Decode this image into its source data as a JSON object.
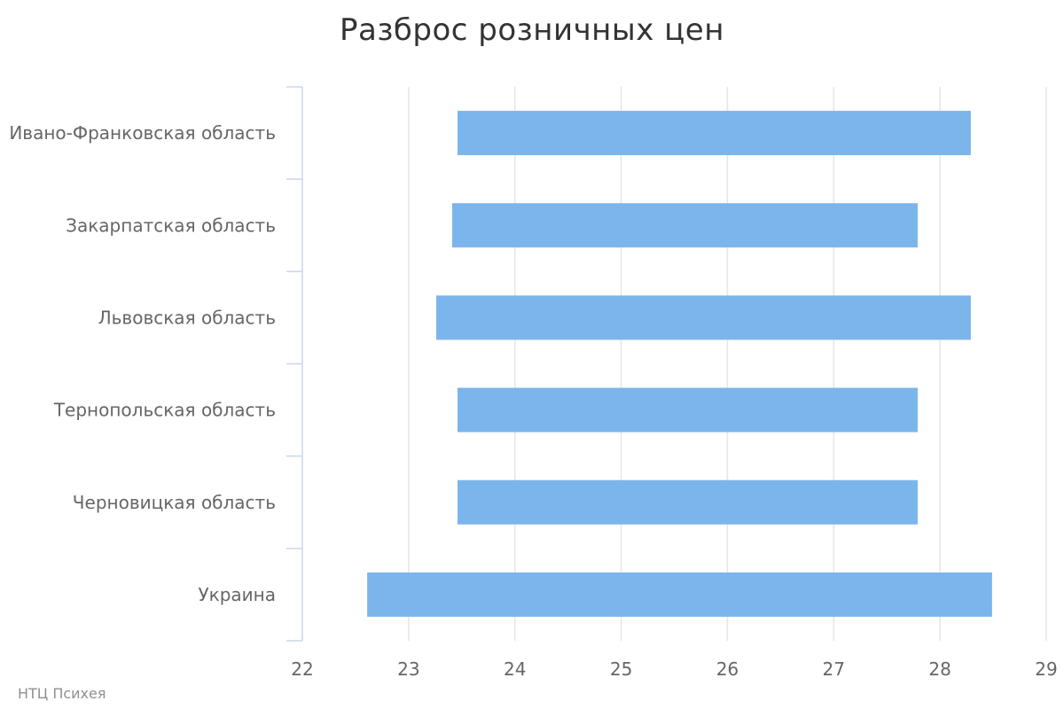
{
  "chart_data": {
    "type": "bar",
    "orientation": "horizontal",
    "subtype": "range",
    "title": "Разброс розничных цен",
    "credit": "НТЦ Психея",
    "categories": [
      "Ивано-Франковская область",
      "Закарпатская область",
      "Львовская область",
      "Тернопольская область",
      "Черновицкая область",
      "Украина"
    ],
    "series": [
      {
        "low": [
          23.46,
          23.41,
          23.26,
          23.46,
          23.46,
          22.61
        ],
        "high": [
          28.29,
          27.79,
          28.29,
          27.79,
          27.79,
          28.49
        ]
      }
    ],
    "xlim": [
      22,
      29
    ],
    "xticks": [
      "22",
      "23",
      "24",
      "25",
      "26",
      "27",
      "28",
      "29"
    ],
    "grid": true,
    "legend": "none",
    "colors": {
      "bar": "#7cb5ec",
      "grid": "#e6e6e6",
      "axis": "#ccd6eb",
      "label": "#666666",
      "title": "#333333"
    }
  }
}
